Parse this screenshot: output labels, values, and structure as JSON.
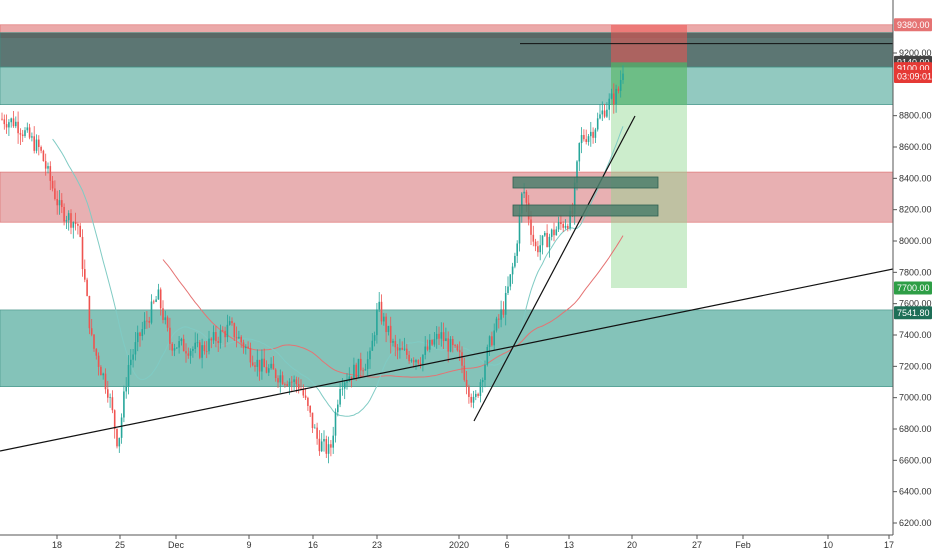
{
  "chart_data": {
    "type": "candlestick",
    "y_axis": {
      "ticks": [
        "9380.00",
        "9200.00",
        "9140.00",
        "9100.00",
        "03:09:01",
        "8800.00",
        "8600.00",
        "8400.00",
        "8200.00",
        "8000.00",
        "7800.00",
        "7700.00",
        "7600.00",
        "7541.80",
        "7400.00",
        "7200.00",
        "7000.00",
        "6800.00",
        "6600.00",
        "6400.00",
        "6200.00"
      ],
      "range": [
        6150,
        9450
      ]
    },
    "x_axis": {
      "labels": [
        "18",
        "25",
        "Dec",
        "9",
        "16",
        "23",
        "2020",
        "6",
        "13",
        "20",
        "27",
        "Feb",
        "10",
        "17"
      ]
    },
    "price_labels": [
      {
        "id": "p9380",
        "text": "9380.00",
        "value": 9380,
        "color": "#e57373"
      },
      {
        "id": "p9140",
        "text": "9140.00",
        "value": 9140,
        "color": "#424242"
      },
      {
        "id": "p9100",
        "text": "9100.00",
        "value": 9100,
        "color": "#e53935"
      },
      {
        "id": "ptimer",
        "text": "03:09:01",
        "value": 9050,
        "color": "#e53935"
      },
      {
        "id": "p7700",
        "text": "7700.00",
        "value": 7700,
        "color": "#2e9e46"
      },
      {
        "id": "p7541",
        "text": "7541.80",
        "value": 7541.8,
        "color": "#1e6e57"
      }
    ],
    "zones": [
      {
        "type": "resistance",
        "from": 9300,
        "to": 9380,
        "color": "#e89a9a"
      },
      {
        "type": "supply",
        "from": 9110,
        "to": 9330,
        "color": "#3f5e5a"
      },
      {
        "type": "demand",
        "from": 8870,
        "to": 9110,
        "color": "#7fbfb5"
      },
      {
        "type": "resistance",
        "from": 8120,
        "to": 8440,
        "color": "#e4a2a4"
      },
      {
        "type": "support",
        "from": 7070,
        "to": 7560,
        "color": "#6fb8ad"
      }
    ],
    "candles_summary": {
      "start_price": 8780,
      "low": 6430,
      "last": 9140,
      "high": 9190
    },
    "position": {
      "entry": 9140,
      "target": 7700,
      "stop": 9380
    },
    "hline": 9260,
    "colors": {
      "up": "#26a69a",
      "down": "#ef5350",
      "ma_slow": "#e57373",
      "ma_fast": "#80cbc4"
    }
  }
}
